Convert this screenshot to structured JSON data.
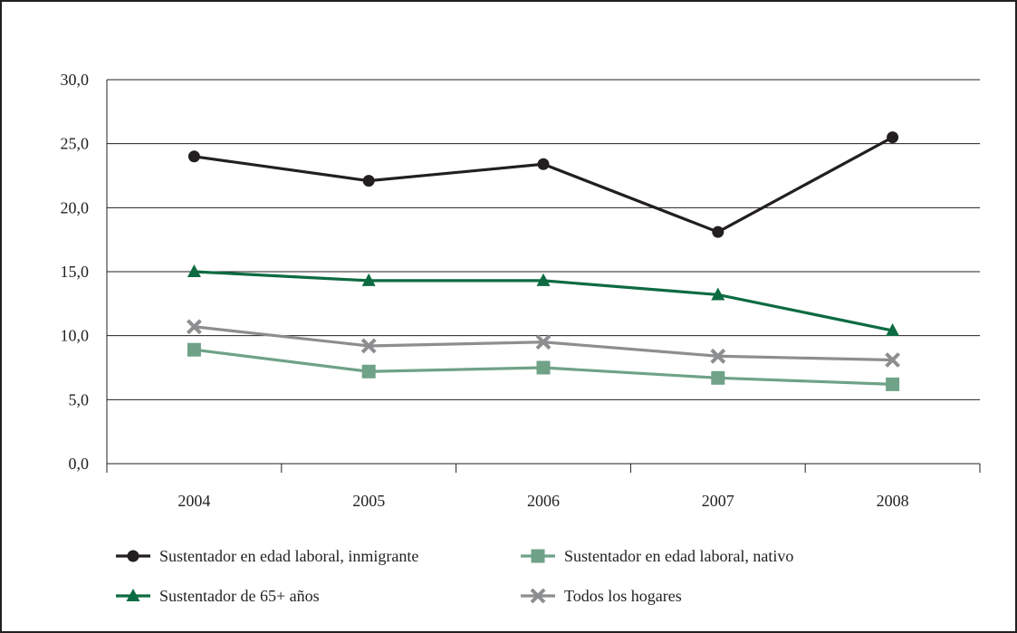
{
  "chart_data": {
    "type": "line",
    "title": "",
    "xlabel": "",
    "ylabel": "",
    "categories": [
      "2004",
      "2005",
      "2006",
      "2007",
      "2008"
    ],
    "ylim": [
      0,
      30
    ],
    "yticks": [
      "0,0",
      "5,0",
      "10,0",
      "15,0",
      "20,0",
      "25,0",
      "30,0"
    ],
    "grid": "horizontal",
    "legend_position": "bottom",
    "series": [
      {
        "name": "Sustentador en edad laboral, inmigrante",
        "values": [
          24.0,
          22.1,
          23.4,
          18.1,
          25.5
        ],
        "color": "#231f20",
        "marker": "circle"
      },
      {
        "name": "Sustentador en edad laboral, nativo",
        "values": [
          8.9,
          7.2,
          7.5,
          6.7,
          6.2
        ],
        "color": "#6fa287",
        "marker": "square"
      },
      {
        "name": "Sustentador de 65+ años",
        "values": [
          15.0,
          14.3,
          14.3,
          13.2,
          10.4
        ],
        "color": "#0d6b41",
        "marker": "triangle"
      },
      {
        "name": "Todos los hogares",
        "values": [
          10.7,
          9.2,
          9.5,
          8.4,
          8.1
        ],
        "color": "#8d8e90",
        "marker": "cross"
      }
    ]
  }
}
